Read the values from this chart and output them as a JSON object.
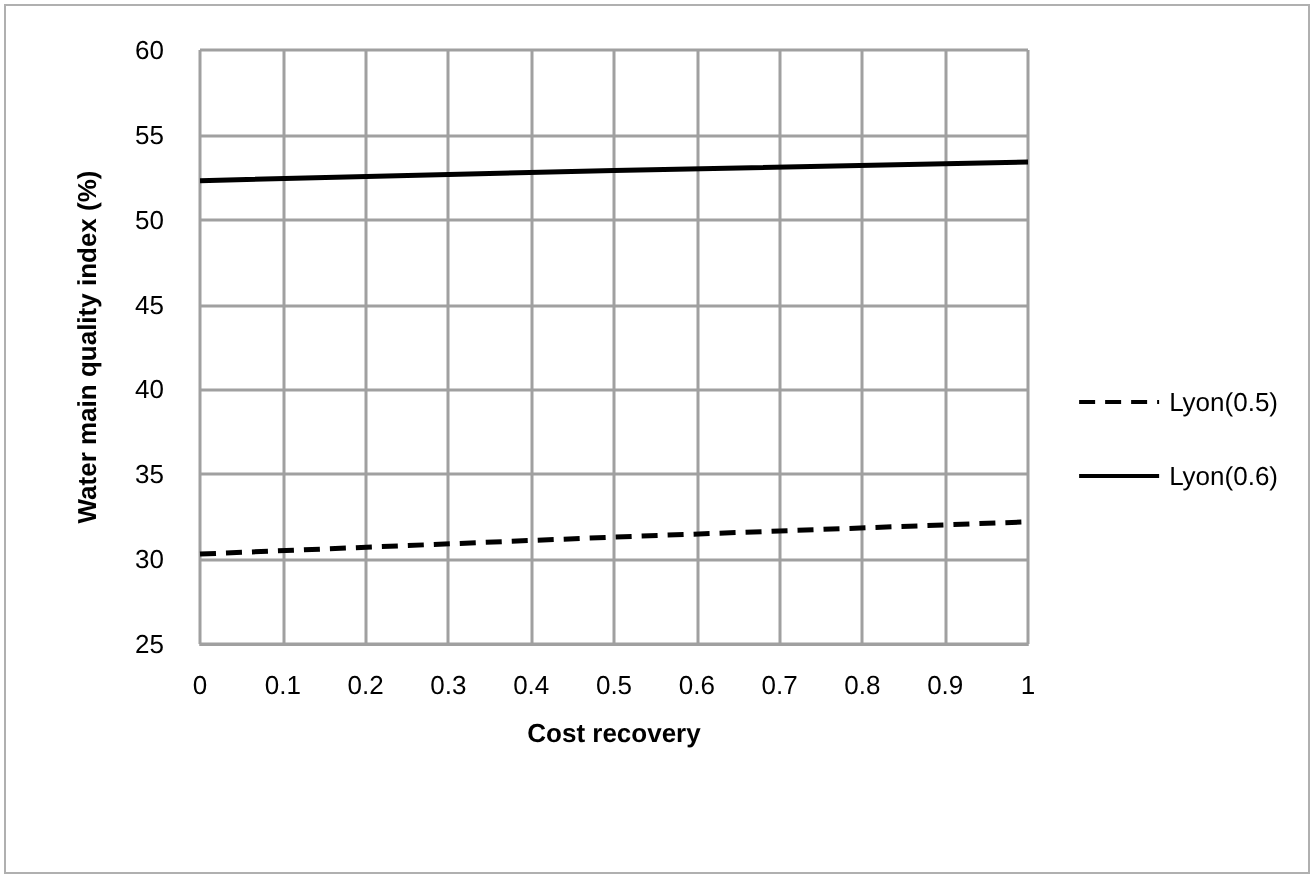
{
  "chart_data": {
    "type": "line",
    "xlabel": "Cost recovery",
    "ylabel": "Water main quality index (%)",
    "x": [
      0,
      0.5,
      1
    ],
    "series": [
      {
        "name": "Lyon(0.5)",
        "color": "#000000",
        "values": [
          30.3,
          31.3,
          32.2
        ],
        "line_style": "dashed"
      },
      {
        "name": "Lyon(0.6)",
        "color": "#000000",
        "values": [
          52.3,
          52.9,
          53.4
        ],
        "line_style": "solid"
      }
    ],
    "xlim": [
      0,
      1
    ],
    "xticks": [
      0,
      0.1,
      0.2,
      0.3,
      0.4,
      0.5,
      0.6,
      0.7,
      0.8,
      0.9,
      1
    ],
    "ylim": [
      25,
      60
    ],
    "yticks": [
      25,
      30,
      35,
      40,
      45,
      50,
      55,
      60
    ],
    "grid": true,
    "legend": "right",
    "marker": "none"
  }
}
